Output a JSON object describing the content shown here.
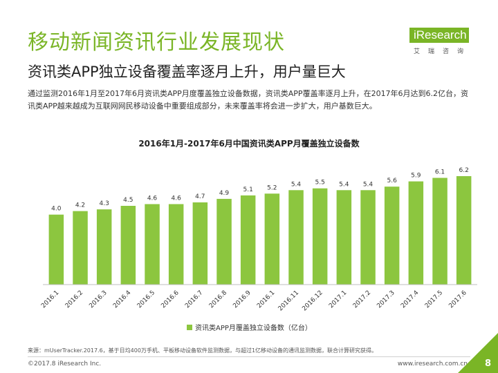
{
  "header": {
    "title": "移动新闻资讯行业发展现状",
    "subtitle": "资讯类APP独立设备覆盖率逐月上升，用户量巨大",
    "description": "通过监测2016年1月至2017年6月资讯类APP月度覆盖独立设备数据，资讯类APP覆盖率逐月上升，在2017年6月达到6.2亿台，资讯类APP越来越成为互联网网民移动设备中重要组成部分，未来覆盖率将会进一步扩大，用户基数巨大。"
  },
  "logo": {
    "brand": "iResearch",
    "sub": "艾瑞咨询"
  },
  "chart_data": {
    "type": "bar",
    "title": "2016年1月-2017年6月中国资讯类APP月覆盖独立设备数",
    "categories": [
      "2016.1",
      "2016.2",
      "2016.3",
      "2016.4",
      "2016.5",
      "2016.6",
      "2016.7",
      "2016.8",
      "2016.9",
      "2016.1",
      "2016.11",
      "2016.12",
      "2017.1",
      "2017.2",
      "2017.3",
      "2017.4",
      "2017.5",
      "2017.6"
    ],
    "series": [
      {
        "name": "资讯类APP月覆盖独立设备数（亿台）",
        "values": [
          4.0,
          4.2,
          4.3,
          4.5,
          4.6,
          4.6,
          4.7,
          4.9,
          5.1,
          5.2,
          5.4,
          5.5,
          5.4,
          5.4,
          5.6,
          5.9,
          6.1,
          6.2
        ]
      }
    ],
    "ylim": [
      0,
      6.2
    ],
    "grid": false,
    "legend": "bottom",
    "color": "#8cc63f"
  },
  "footer": {
    "source": "来源：mUserTracker.2017.6，基于日均400万手机、平板移动设备软件监测数据，与超过1亿移动设备的通讯监测数据，联合计算研究获得。",
    "copyright": "©2017.8 iResearch Inc.",
    "url": "www.iresearch.com.cn",
    "page": "8"
  }
}
